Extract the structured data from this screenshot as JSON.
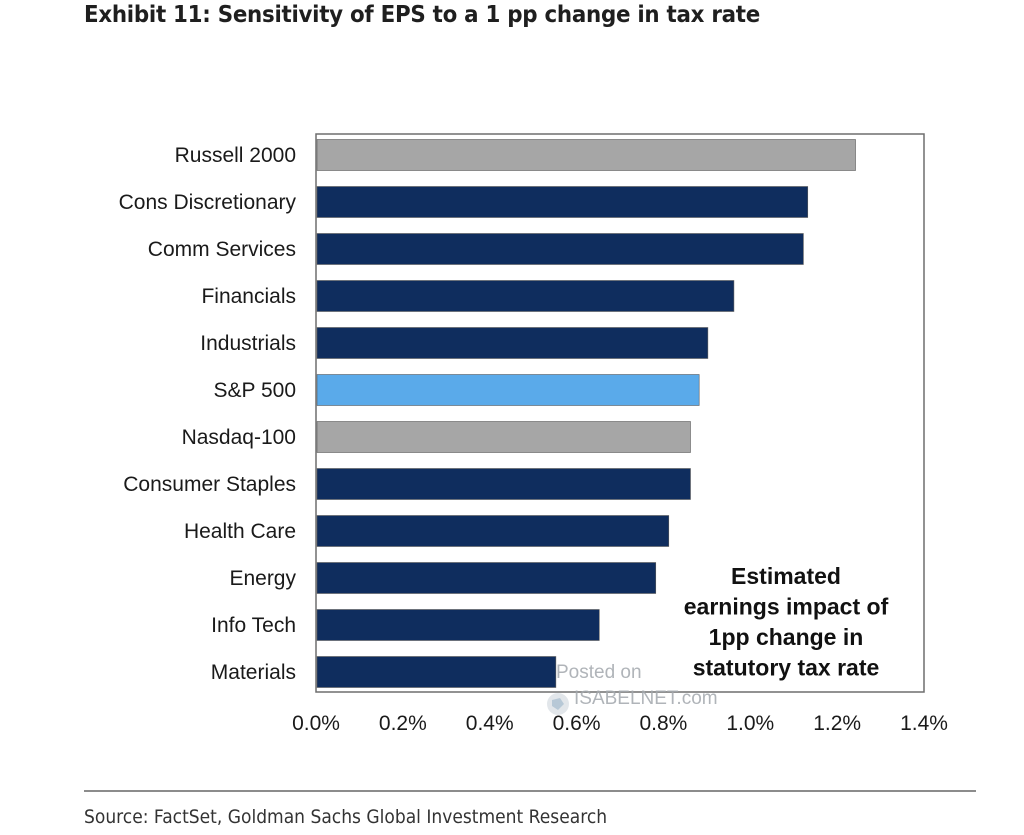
{
  "title": "Exhibit 11: Sensitivity of EPS to a 1 pp change in tax rate",
  "source": "Source: FactSet, Goldman Sachs Global Investment Research",
  "watermark": {
    "line1": "Posted on",
    "line2": "ISABELNET.com"
  },
  "colors": {
    "sector": "#0f2d5e",
    "sp500": "#5aaaea",
    "index": "#a6a6a6"
  },
  "chart_data": {
    "type": "bar",
    "orientation": "horizontal",
    "categories": [
      "Russell 2000",
      "Cons Discretionary",
      "Comm Services",
      "Financials",
      "Industrials",
      "S&P 500",
      "Nasdaq-100",
      "Consumer Staples",
      "Health Care",
      "Energy",
      "Info Tech",
      "Materials"
    ],
    "values": [
      1.24,
      1.13,
      1.12,
      0.96,
      0.9,
      0.88,
      0.86,
      0.86,
      0.81,
      0.78,
      0.65,
      0.55
    ],
    "bar_color_keys": [
      "index",
      "sector",
      "sector",
      "sector",
      "sector",
      "sp500",
      "index",
      "sector",
      "sector",
      "sector",
      "sector",
      "sector"
    ],
    "xlim": [
      0,
      1.4
    ],
    "xticks": [
      0.0,
      0.2,
      0.4,
      0.6,
      0.8,
      1.0,
      1.2,
      1.4
    ],
    "xtick_labels": [
      "0.0%",
      "0.2%",
      "0.4%",
      "0.6%",
      "0.8%",
      "1.0%",
      "1.2%",
      "1.4%"
    ],
    "annotation": [
      "Estimated",
      "earnings impact of",
      "1pp change in",
      "statutory tax rate"
    ],
    "grid": false,
    "legend": "none"
  }
}
